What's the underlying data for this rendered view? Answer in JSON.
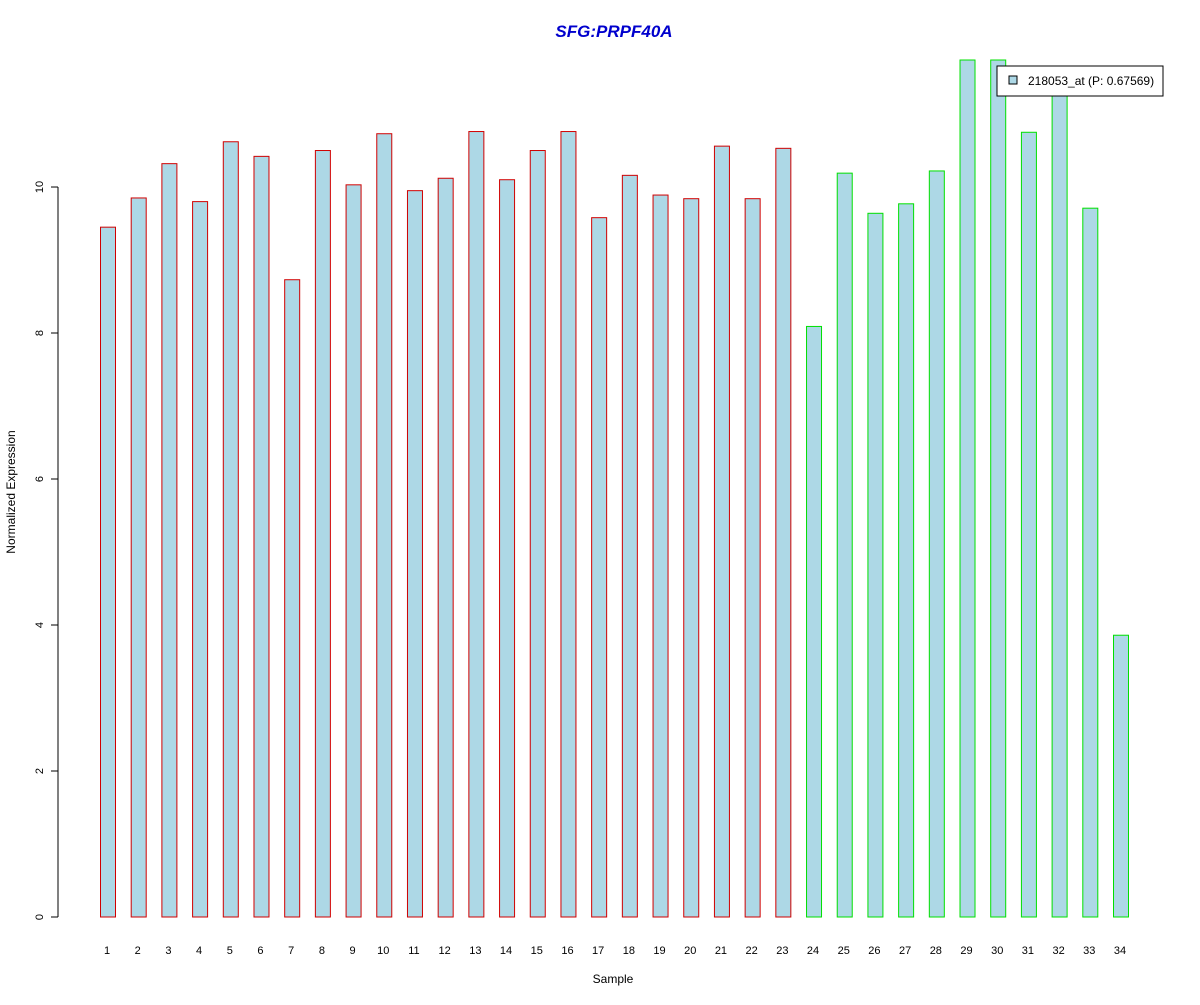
{
  "chart_data": {
    "type": "bar",
    "title": "SFG:PRPF40A",
    "xlabel": "Sample",
    "ylabel": "Normalized Expression",
    "categories": [
      "1",
      "2",
      "3",
      "4",
      "5",
      "6",
      "7",
      "8",
      "9",
      "10",
      "11",
      "12",
      "13",
      "14",
      "15",
      "16",
      "17",
      "18",
      "19",
      "20",
      "21",
      "22",
      "23",
      "24",
      "25",
      "26",
      "27",
      "28",
      "29",
      "30",
      "31",
      "32",
      "33",
      "34"
    ],
    "series": [
      {
        "name": "218053_at (P: 0.67569)",
        "values": [
          9.45,
          9.85,
          10.32,
          9.8,
          10.62,
          10.42,
          8.73,
          10.5,
          10.03,
          10.73,
          9.95,
          10.12,
          10.76,
          10.1,
          10.5,
          10.76,
          9.58,
          10.16,
          9.89,
          9.84,
          10.56,
          9.84,
          10.53,
          8.09,
          10.19,
          9.64,
          9.77,
          10.22,
          11.74,
          11.74,
          10.75,
          11.3,
          9.71,
          3.86
        ]
      }
    ],
    "groups": [
      {
        "samples": [
          1,
          23
        ],
        "color": "#d00000"
      },
      {
        "samples": [
          24,
          34
        ],
        "color": "#00e000"
      }
    ],
    "ylim": [
      0,
      11.74
    ],
    "yticks": [
      0,
      2,
      4,
      6,
      8,
      10
    ],
    "grid": false,
    "legend_position": "top-right",
    "colors": {
      "fill": "#add8e6",
      "title": "#0000cd",
      "axis": "#000000"
    }
  }
}
